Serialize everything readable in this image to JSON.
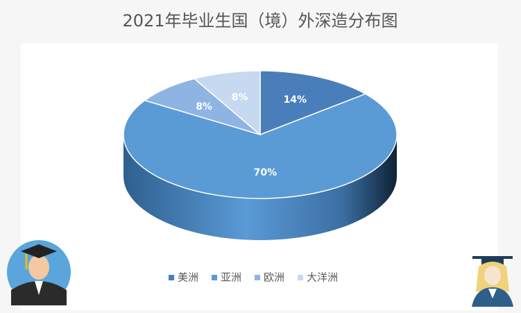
{
  "chart_data": {
    "type": "pie",
    "title": "2021年毕业生国（境）外深造分布图",
    "categories": [
      "美洲",
      "亚洲",
      "欧洲",
      "大洋洲"
    ],
    "values": [
      14,
      70,
      8,
      8
    ],
    "value_labels": [
      "14%",
      "70%",
      "8%",
      "8%"
    ],
    "colors": [
      "#4a7ebb",
      "#5b9bd5",
      "#8eb4e3",
      "#c6d9f1"
    ],
    "legend": "bottom"
  }
}
